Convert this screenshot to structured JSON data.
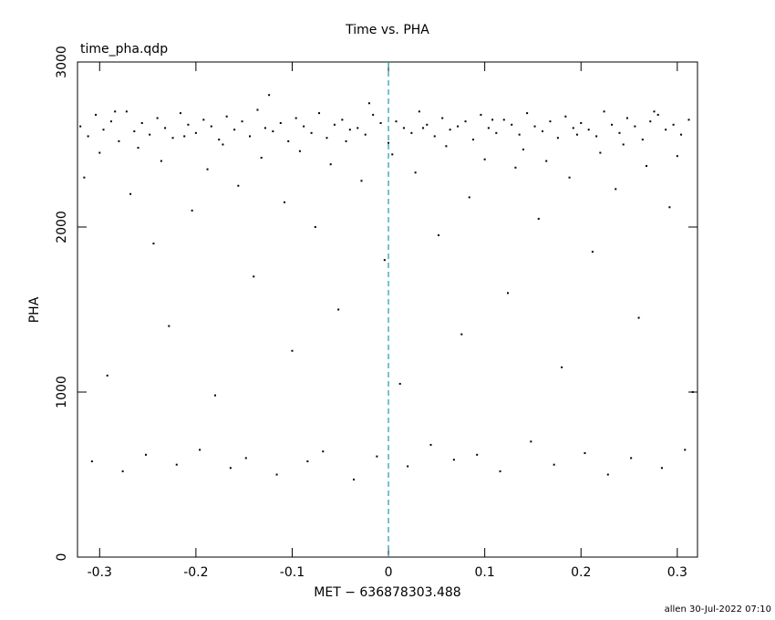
{
  "chart_data": {
    "type": "scatter",
    "title": "Time vs. PHA",
    "annotation": "time_pha.qdp",
    "xlabel": "MET − 636878303.488",
    "ylabel": "PHA",
    "footer": "allen 30-Jul-2022 07:10",
    "xlim": [
      -0.323,
      0.321
    ],
    "ylim": [
      0,
      3000
    ],
    "xticks": [
      -0.3,
      -0.2,
      -0.1,
      0,
      0.1,
      0.2,
      0.3
    ],
    "yticks": [
      0,
      1000,
      2000,
      3000
    ],
    "reference_line": {
      "x": 0,
      "color": "#1a9aaa"
    },
    "series": [
      {
        "color": "#000000",
        "x": [
          -0.32,
          -0.312,
          -0.304,
          -0.296,
          -0.288,
          -0.28,
          -0.272,
          -0.264,
          -0.256,
          -0.248,
          -0.24,
          -0.232,
          -0.224,
          -0.216,
          -0.208,
          -0.2,
          -0.192,
          -0.184,
          -0.176,
          -0.168,
          -0.16,
          -0.152,
          -0.144,
          -0.136,
          -0.128,
          -0.12,
          -0.112,
          -0.104,
          -0.096,
          -0.088,
          -0.08,
          -0.072,
          -0.064,
          -0.056,
          -0.048,
          -0.04,
          -0.032,
          -0.024,
          -0.016,
          -0.008,
          0,
          0.008,
          0.016,
          0.024,
          0.032,
          0.04,
          0.048,
          0.056,
          0.064,
          0.072,
          0.08,
          0.088,
          0.096,
          0.104,
          0.112,
          0.12,
          0.128,
          0.136,
          0.144,
          0.152,
          0.16,
          0.168,
          0.176,
          0.184,
          0.192,
          0.2,
          0.208,
          0.216,
          0.224,
          0.232,
          0.24,
          0.248,
          0.256,
          0.264,
          0.272,
          0.28,
          0.288,
          0.296,
          0.304,
          0.312
        ],
        "values": [
          2610,
          2550,
          2680,
          2590,
          2640,
          2520,
          2700,
          2580,
          2630,
          2560,
          2660,
          2600,
          2540,
          2690,
          2620,
          2570,
          2650,
          2610,
          2530,
          2670,
          2590,
          2640,
          2550,
          2710,
          2600,
          2580,
          2630,
          2520,
          2660,
          2610,
          2570,
          2690,
          2540,
          2620,
          2650,
          2590,
          2600,
          2560,
          2680,
          2630,
          2510,
          2640,
          2600,
          2570,
          2700,
          2620,
          2550,
          2660,
          2590,
          2610,
          2640,
          2530,
          2680,
          2600,
          2570,
          2650,
          2620,
          2560,
          2690,
          2610,
          2580,
          2640,
          2540,
          2670,
          2600,
          2630,
          2590,
          2550,
          2700,
          2620,
          2570,
          2660,
          2610,
          2530,
          2640,
          2680,
          2590,
          2620,
          2560,
          2650
        ]
      },
      {
        "color": "#000000",
        "x": [
          -0.316,
          -0.308,
          -0.3,
          -0.292,
          -0.284,
          -0.276,
          -0.268,
          -0.26,
          -0.252,
          -0.244,
          -0.236,
          -0.228,
          -0.22,
          -0.212,
          -0.204,
          -0.196,
          -0.188,
          -0.18,
          -0.172,
          -0.164,
          -0.156,
          -0.148,
          -0.14,
          -0.132,
          -0.124,
          -0.116,
          -0.108,
          -0.1,
          -0.092,
          -0.084,
          -0.076,
          -0.068,
          -0.06,
          -0.052,
          -0.044,
          -0.036,
          -0.028,
          -0.02,
          -0.012,
          -0.004,
          0.004,
          0.012,
          0.02,
          0.028,
          0.036,
          0.044,
          0.052,
          0.06,
          0.068,
          0.076,
          0.084,
          0.092,
          0.1,
          0.108,
          0.116,
          0.124,
          0.132,
          0.14,
          0.148,
          0.156,
          0.164,
          0.172,
          0.18,
          0.188,
          0.196,
          0.204,
          0.212,
          0.22,
          0.228,
          0.236,
          0.244,
          0.252,
          0.26,
          0.268,
          0.276,
          0.284,
          0.292,
          0.3,
          0.308,
          0.316
        ],
        "values": [
          2300,
          580,
          2450,
          1100,
          2700,
          520,
          2200,
          2480,
          620,
          1900,
          2400,
          1400,
          560,
          2550,
          2100,
          650,
          2350,
          980,
          2500,
          540,
          2250,
          600,
          1700,
          2420,
          2800,
          500,
          2150,
          1250,
          2460,
          580,
          2000,
          640,
          2380,
          1500,
          2520,
          470,
          2280,
          2750,
          610,
          1800,
          2440,
          1050,
          550,
          2330,
          2600,
          680,
          1950,
          2490,
          590,
          1350,
          2180,
          620,
          2410,
          2650,
          520,
          1600,
          2360,
          2470,
          700,
          2050,
          2400,
          560,
          1150,
          2300,
          2560,
          630,
          1850,
          2450,
          500,
          2230,
          2500,
          600,
          1450,
          2370,
          2700,
          540,
          2120,
          2430,
          650,
          1000
        ]
      }
    ]
  }
}
